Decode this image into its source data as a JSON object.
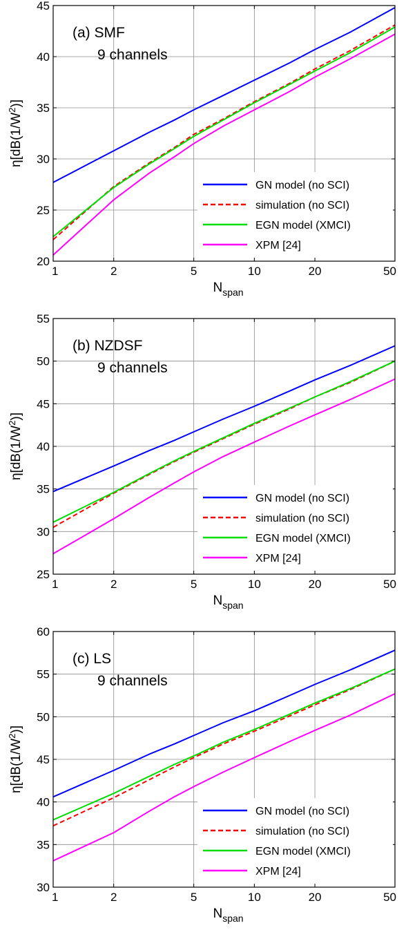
{
  "chart_data": [
    {
      "type": "line",
      "title": "",
      "annotation": [
        "(a) SMF",
        "9 channels"
      ],
      "xlabel_main": "N",
      "xlabel_sub": "span",
      "ylabel": "η[dB(1/W²)]",
      "xscale": "log",
      "xlim": [
        1,
        50
      ],
      "ylim": [
        20,
        45
      ],
      "xticks": [
        1,
        2,
        5,
        10,
        20,
        50
      ],
      "yticks": [
        20,
        25,
        30,
        35,
        40,
        45
      ],
      "grid": true,
      "legend": "bottom-right",
      "x": [
        1,
        2,
        3,
        4,
        5,
        7,
        10,
        15,
        20,
        30,
        50
      ],
      "series": [
        {
          "name": "GN model (no SCI)",
          "color": "#0000ff",
          "style": "solid",
          "values": [
            27.7,
            30.8,
            32.6,
            33.8,
            34.8,
            36.2,
            37.7,
            39.4,
            40.7,
            42.4,
            44.8
          ]
        },
        {
          "name": "simulation (no SCI)",
          "color": "#ff0000",
          "style": "dashed",
          "values": [
            22.1,
            27.3,
            29.6,
            31.1,
            32.4,
            33.9,
            35.6,
            37.4,
            38.8,
            40.6,
            43.1
          ]
        },
        {
          "name": "EGN model (XMCI)",
          "color": "#00dd00",
          "style": "solid",
          "values": [
            22.4,
            27.2,
            29.5,
            31.0,
            32.2,
            33.8,
            35.5,
            37.3,
            38.6,
            40.4,
            42.9
          ]
        },
        {
          "name": "XPM [24]",
          "color": "#ff00ff",
          "style": "solid",
          "values": [
            20.6,
            26.0,
            28.6,
            30.2,
            31.5,
            33.2,
            34.8,
            36.6,
            38.0,
            39.8,
            42.2
          ]
        }
      ]
    },
    {
      "type": "line",
      "title": "",
      "annotation": [
        "(b) NZDSF",
        "9 channels"
      ],
      "xlabel_main": "N",
      "xlabel_sub": "span",
      "ylabel": "η[dB(1/W²)]",
      "xscale": "log",
      "xlim": [
        1,
        50
      ],
      "ylim": [
        25,
        55
      ],
      "xticks": [
        1,
        2,
        5,
        10,
        20,
        50
      ],
      "yticks": [
        25,
        30,
        35,
        40,
        45,
        50,
        55
      ],
      "grid": true,
      "legend": "bottom-right",
      "x": [
        1,
        2,
        3,
        4,
        5,
        7,
        10,
        15,
        20,
        30,
        50
      ],
      "series": [
        {
          "name": "GN model (no SCI)",
          "color": "#0000ff",
          "style": "solid",
          "values": [
            34.7,
            37.7,
            39.5,
            40.7,
            41.7,
            43.2,
            44.7,
            46.5,
            47.8,
            49.5,
            51.8
          ]
        },
        {
          "name": "simulation (no SCI)",
          "color": "#ff0000",
          "style": "dashed",
          "values": [
            30.5,
            34.5,
            36.7,
            38.2,
            39.3,
            40.9,
            42.6,
            44.4,
            45.8,
            47.5,
            50.0
          ]
        },
        {
          "name": "EGN model (XMCI)",
          "color": "#00dd00",
          "style": "solid",
          "values": [
            31.1,
            34.6,
            36.8,
            38.3,
            39.4,
            41.0,
            42.7,
            44.5,
            45.8,
            47.6,
            50.0
          ]
        },
        {
          "name": "XPM [24]",
          "color": "#ff00ff",
          "style": "solid",
          "values": [
            27.4,
            31.5,
            34.0,
            35.7,
            37.0,
            38.8,
            40.5,
            42.4,
            43.7,
            45.5,
            47.9
          ]
        }
      ]
    },
    {
      "type": "line",
      "title": "",
      "annotation": [
        "(c) LS",
        "9 channels"
      ],
      "xlabel_main": "N",
      "xlabel_sub": "span",
      "ylabel": "η[dB(1/W²)]",
      "xscale": "log",
      "xlim": [
        1,
        50
      ],
      "ylim": [
        30,
        60
      ],
      "xticks": [
        1,
        2,
        5,
        10,
        20,
        50
      ],
      "yticks": [
        30,
        35,
        40,
        45,
        50,
        55,
        60
      ],
      "grid": true,
      "legend": "bottom-right",
      "x": [
        1,
        2,
        3,
        4,
        5,
        7,
        10,
        15,
        20,
        30,
        50
      ],
      "series": [
        {
          "name": "GN model (no SCI)",
          "color": "#0000ff",
          "style": "solid",
          "values": [
            40.6,
            43.7,
            45.6,
            46.8,
            47.8,
            49.3,
            50.7,
            52.5,
            53.8,
            55.5,
            57.8
          ]
        },
        {
          "name": "simulation (no SCI)",
          "color": "#ff0000",
          "style": "dashed",
          "values": [
            37.2,
            40.5,
            42.6,
            44.1,
            45.2,
            46.8,
            48.3,
            50.1,
            51.4,
            53.2,
            55.6
          ]
        },
        {
          "name": "EGN model (XMCI)",
          "color": "#00dd00",
          "style": "solid",
          "values": [
            37.9,
            41.0,
            43.0,
            44.4,
            45.4,
            47.0,
            48.5,
            50.3,
            51.6,
            53.3,
            55.6
          ]
        },
        {
          "name": "XPM [24]",
          "color": "#ff00ff",
          "style": "solid",
          "values": [
            33.1,
            36.4,
            38.9,
            40.6,
            41.8,
            43.5,
            45.2,
            47.1,
            48.4,
            50.2,
            52.7
          ]
        }
      ]
    }
  ]
}
